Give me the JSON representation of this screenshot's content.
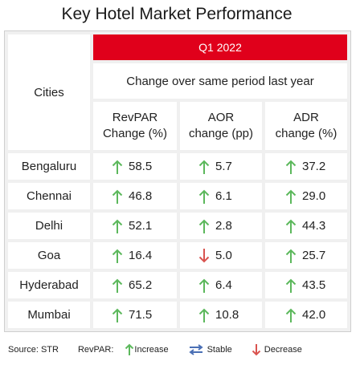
{
  "title": "Key Hotel Market Performance",
  "colors": {
    "accent_red": "#e0001b",
    "increase_green": "#5cb85c",
    "decrease_red": "#d9534f",
    "stable_blue": "#4a6fb5"
  },
  "header": {
    "period": "Q1 2022",
    "subheader": "Change over same period last year",
    "cities_label": "Cities",
    "col1": [
      "RevPAR",
      "Change (%)"
    ],
    "col2": [
      "AOR",
      "change (pp)"
    ],
    "col3": [
      "ADR",
      "change (%)"
    ]
  },
  "rows": [
    {
      "city": "Bengaluru",
      "revpar": "58.5",
      "revpar_dir": "increase",
      "aor": "5.7",
      "aor_dir": "increase",
      "adr": "37.2",
      "adr_dir": "increase"
    },
    {
      "city": "Chennai",
      "revpar": "46.8",
      "revpar_dir": "increase",
      "aor": "6.1",
      "aor_dir": "increase",
      "adr": "29.0",
      "adr_dir": "increase"
    },
    {
      "city": "Delhi",
      "revpar": "52.1",
      "revpar_dir": "increase",
      "aor": "2.8",
      "aor_dir": "increase",
      "adr": "44.3",
      "adr_dir": "increase"
    },
    {
      "city": "Goa",
      "revpar": "16.4",
      "revpar_dir": "increase",
      "aor": "5.0",
      "aor_dir": "decrease",
      "adr": "25.7",
      "adr_dir": "increase"
    },
    {
      "city": "Hyderabad",
      "revpar": "65.2",
      "revpar_dir": "increase",
      "aor": "6.4",
      "aor_dir": "increase",
      "adr": "43.5",
      "adr_dir": "increase"
    },
    {
      "city": "Mumbai",
      "revpar": "71.5",
      "revpar_dir": "increase",
      "aor": "10.8",
      "aor_dir": "increase",
      "adr": "42.0",
      "adr_dir": "increase"
    }
  ],
  "footer": {
    "source": "Source: STR",
    "revpar_label": "RevPAR:",
    "increase": "Increase",
    "stable": "Stable",
    "decrease": "Decrease"
  }
}
